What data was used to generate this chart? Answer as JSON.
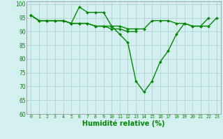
{
  "x_ticks": [
    0,
    1,
    2,
    3,
    4,
    5,
    6,
    7,
    8,
    9,
    10,
    11,
    12,
    13,
    14,
    15,
    16,
    17,
    18,
    19,
    20,
    21,
    22,
    23
  ],
  "line1": {
    "x": [
      0,
      1,
      2,
      3,
      4,
      5,
      6,
      7,
      8,
      9,
      10,
      11,
      12,
      13,
      14,
      15,
      16,
      17,
      18,
      19,
      20,
      21,
      22,
      23
    ],
    "y": [
      96,
      94,
      94,
      94,
      94,
      93,
      99,
      97,
      97,
      97,
      92,
      89,
      86,
      72,
      68,
      72,
      79,
      83,
      89,
      93,
      92,
      92,
      95,
      null
    ]
  },
  "line2": {
    "x": [
      0,
      1,
      2,
      3,
      4,
      5,
      6,
      7,
      8,
      9,
      10,
      11,
      12,
      13,
      14,
      15,
      16,
      17,
      18,
      19,
      20,
      21,
      22,
      23
    ],
    "y": [
      96,
      94,
      94,
      94,
      94,
      93,
      93,
      93,
      92,
      92,
      92,
      92,
      91,
      91,
      91,
      94,
      94,
      94,
      93,
      93,
      92,
      92,
      92,
      95
    ]
  },
  "line3": {
    "x": [
      0,
      1,
      2,
      3,
      4,
      5,
      6,
      7,
      8,
      9,
      10,
      11,
      12,
      13,
      14,
      15,
      16,
      17,
      18,
      19,
      20,
      21,
      22,
      23
    ],
    "y": [
      96,
      94,
      94,
      94,
      94,
      93,
      93,
      93,
      92,
      92,
      91,
      91,
      90,
      90,
      null,
      null,
      null,
      null,
      null,
      null,
      null,
      null,
      null,
      null
    ]
  },
  "xlabel": "Humidité relative (%)",
  "ylim": [
    60,
    101
  ],
  "xlim": [
    -0.5,
    23.5
  ],
  "yticks": [
    60,
    65,
    70,
    75,
    80,
    85,
    90,
    95,
    100
  ],
  "bg_color": "#d4efef",
  "grid_color": "#aacccc",
  "line_color": "#008800",
  "marker": "D",
  "markersize": 2.0,
  "linewidth": 1.0,
  "xlabel_fontsize": 7,
  "xtick_fontsize": 4.8,
  "ytick_fontsize": 5.5
}
